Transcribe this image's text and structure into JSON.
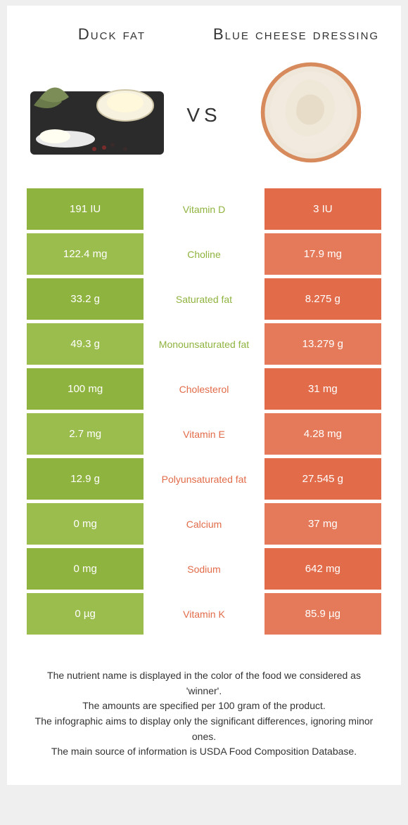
{
  "left_food": {
    "title": "Duck fat",
    "color": "#8fb33f"
  },
  "right_food": {
    "title": "Blue cheese dressing",
    "color": "#e26b49"
  },
  "vs_label": "vs",
  "rows": [
    {
      "nutrient": "Vitamin D",
      "left": "191 IU",
      "right": "3 IU",
      "winner": "left"
    },
    {
      "nutrient": "Choline",
      "left": "122.4 mg",
      "right": "17.9 mg",
      "winner": "left"
    },
    {
      "nutrient": "Saturated fat",
      "left": "33.2 g",
      "right": "8.275 g",
      "winner": "left"
    },
    {
      "nutrient": "Monounsaturated fat",
      "left": "49.3 g",
      "right": "13.279 g",
      "winner": "left"
    },
    {
      "nutrient": "Cholesterol",
      "left": "100 mg",
      "right": "31 mg",
      "winner": "right"
    },
    {
      "nutrient": "Vitamin E",
      "left": "2.7 mg",
      "right": "4.28 mg",
      "winner": "right"
    },
    {
      "nutrient": "Polyunsaturated fat",
      "left": "12.9 g",
      "right": "27.545 g",
      "winner": "right"
    },
    {
      "nutrient": "Calcium",
      "left": "0 mg",
      "right": "37 mg",
      "winner": "right"
    },
    {
      "nutrient": "Sodium",
      "left": "0 mg",
      "right": "642 mg",
      "winner": "right"
    },
    {
      "nutrient": "Vitamin K",
      "left": "0 µg",
      "right": "85.9 µg",
      "winner": "right"
    }
  ],
  "left_column_bg": {
    "dark": "#8fb33f",
    "light": "#9bbd4e"
  },
  "right_column_bg": {
    "dark": "#e26b49",
    "light": "#e57a5a"
  },
  "footer_lines": [
    "The nutrient name is displayed in the color of the food we considered as 'winner'.",
    "The amounts are specified per 100 gram of the product.",
    "The infographic aims to display only the significant differences, ignoring minor ones.",
    "The main source of information is USDA Food Composition Database."
  ]
}
